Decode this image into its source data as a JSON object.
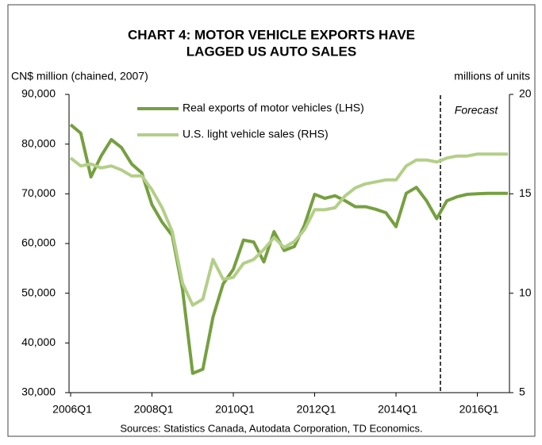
{
  "chart_data": {
    "type": "line",
    "title": "CHART 4: MOTOR VEHICLE EXPORTS HAVE",
    "subtitle": "LAGGED US AUTO SALES",
    "ylabel": "CN$ million (chained, 2007)",
    "y2label": "millions of units",
    "annotations": [
      "Forecast"
    ],
    "source": "Sources: Statistics Canada, Autodata Corporation, TD Economics.",
    "categories": [
      "2006Q1",
      null,
      null,
      null,
      null,
      null,
      null,
      null,
      "2008Q1",
      null,
      null,
      null,
      null,
      null,
      null,
      null,
      "2010Q1",
      null,
      null,
      null,
      null,
      null,
      null,
      null,
      "2012Q1",
      null,
      null,
      null,
      null,
      null,
      null,
      null,
      "2014Q1",
      null,
      null,
      null,
      null,
      null,
      null,
      null,
      "2016Q1",
      null,
      null,
      null
    ],
    "series": [
      {
        "name": "Real exports of motor vehicles (LHS)",
        "color": "#76a040",
        "axis": "y",
        "values": [
          83900,
          82200,
          73400,
          77600,
          80900,
          79300,
          76000,
          74200,
          67800,
          64300,
          61600,
          50800,
          33900,
          34700,
          45200,
          51900,
          54800,
          60700,
          60300,
          56300,
          62400,
          58600,
          59400,
          63700,
          69900,
          69100,
          69600,
          68600,
          67400,
          67400,
          66900,
          66200,
          63400,
          70100,
          71300,
          68600,
          65000,
          68600,
          69400,
          69900,
          70000,
          70100,
          70100,
          70100
        ]
      },
      {
        "name": "U.S. light vehicle sales (RHS)",
        "color": "#b3cf88",
        "axis": "y2",
        "values": [
          16.8,
          16.4,
          16.5,
          16.3,
          16.4,
          16.2,
          15.9,
          15.9,
          15.2,
          14.3,
          13.1,
          10.5,
          9.4,
          9.7,
          11.7,
          10.7,
          10.8,
          11.5,
          11.7,
          12.2,
          12.8,
          12.3,
          12.6,
          13.2,
          14.2,
          14.2,
          14.3,
          14.9,
          15.3,
          15.5,
          15.6,
          15.7,
          15.7,
          16.4,
          16.7,
          16.7,
          16.6,
          16.8,
          16.9,
          16.9,
          17.0,
          17.0,
          17.0,
          17.0
        ]
      }
    ],
    "ylim": [
      30000,
      90000
    ],
    "yticks": [
      {
        "value": 30000,
        "label": "30,000"
      },
      {
        "value": 40000,
        "label": "40,000"
      },
      {
        "value": 50000,
        "label": "50,000"
      },
      {
        "value": 60000,
        "label": "60,000"
      },
      {
        "value": 70000,
        "label": "70,000"
      },
      {
        "value": 80000,
        "label": "80,000"
      },
      {
        "value": 90000,
        "label": "90,000"
      }
    ],
    "y2lim": [
      5,
      20
    ],
    "y2ticks": [
      5,
      10,
      15,
      20
    ],
    "grid": false
  }
}
